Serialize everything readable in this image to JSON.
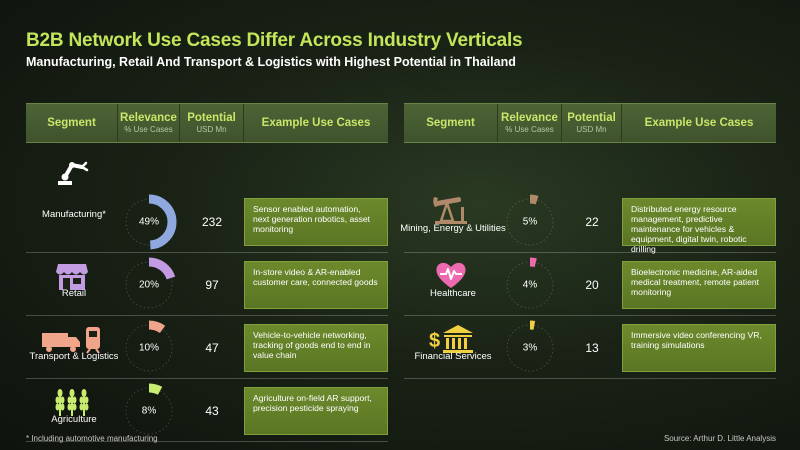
{
  "title": "B2B Network Use Cases Differ Across Industry Verticals",
  "subtitle": "Manufacturing, Retail And Transport & Logistics with Highest Potential in Thailand",
  "headers": {
    "segment": "Segment",
    "relevance": "Relevance",
    "relevance_sub": "% Use Cases",
    "potential": "Potential",
    "potential_sub": "USD Mn",
    "examples": "Example Use Cases"
  },
  "colors": {
    "title": "#c4e45a",
    "manufacturing": "#8fa8e0",
    "retail": "#c39be3",
    "transport": "#f0a58a",
    "agriculture": "#c8ec70",
    "mining": "#b0896a",
    "healthcare": "#ee6ab0",
    "financial": "#f0d040"
  },
  "chart_data": {
    "type": "table",
    "columns": [
      "Segment",
      "Relevance (% Use Cases)",
      "Potential (USD Mn)",
      "Example Use Cases"
    ],
    "left": [
      {
        "segment": "Manufacturing*",
        "icon": "robot-arm-icon",
        "relevance": 49,
        "relevance_label": "49%",
        "potential": 232,
        "potential_label": "232",
        "examples": "Sensor enabled automation, next generation robotics, asset monitoring"
      },
      {
        "segment": "Retail",
        "icon": "storefront-icon",
        "relevance": 20,
        "relevance_label": "20%",
        "potential": 97,
        "potential_label": "97",
        "examples": "In-store video & AR-enabled customer care, connected goods"
      },
      {
        "segment": "Transport & Logistics",
        "icon": "truck-train-icon",
        "relevance": 10,
        "relevance_label": "10%",
        "potential": 47,
        "potential_label": "47",
        "examples": "Vehicle-to-vehicle networking, tracking of goods end to end in value chain"
      },
      {
        "segment": "Agriculture",
        "icon": "wheat-icon",
        "relevance": 8,
        "relevance_label": "8%",
        "potential": 43,
        "potential_label": "43",
        "examples": "Agriculture on-field AR support, precision pesticide spraying"
      }
    ],
    "right": [
      {
        "segment": "Mining, Energy & Utilities",
        "icon": "oil-pump-icon",
        "relevance": 5,
        "relevance_label": "5%",
        "potential": 22,
        "potential_label": "22",
        "examples": "Distributed energy resource management, predictive maintenance for vehicles & equipment, digital twin, robotic drilling"
      },
      {
        "segment": "Healthcare",
        "icon": "heart-pulse-icon",
        "relevance": 4,
        "relevance_label": "4%",
        "potential": 20,
        "potential_label": "20",
        "examples": "Bioelectronic medicine, AR-aided medical treatment, remote patient monitoring"
      },
      {
        "segment": "Financial Services",
        "icon": "bank-icon",
        "relevance": 3,
        "relevance_label": "3%",
        "potential": 13,
        "potential_label": "13",
        "examples": "Immersive video conferencing VR, training simulations"
      }
    ]
  },
  "footnote": "* Including automotive manufacturing",
  "source": "Source: Arthur D. Little Analysis"
}
